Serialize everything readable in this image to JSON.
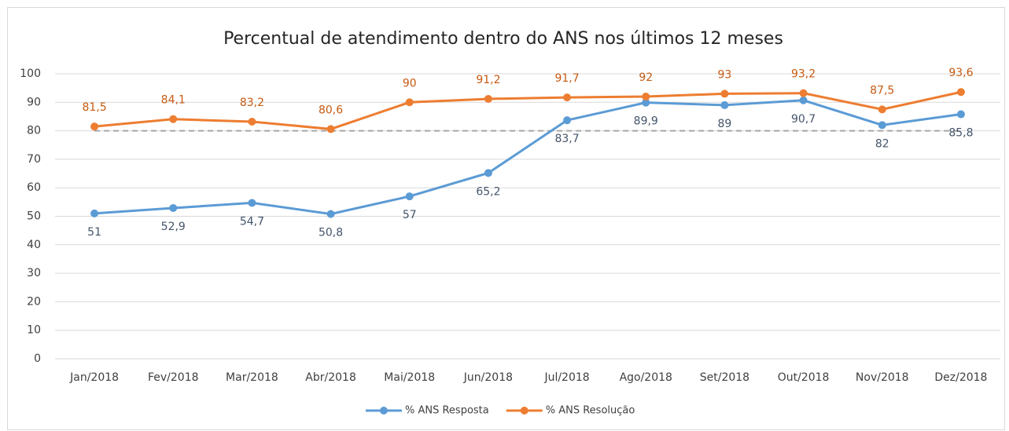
{
  "chart_data": {
    "type": "line",
    "title": "Percentual de atendimento dentro do ANS nos últimos 12 meses",
    "categories": [
      "Jan/2018",
      "Fev/2018",
      "Mar/2018",
      "Abr/2018",
      "Mai/2018",
      "Jun/2018",
      "Jul/2018",
      "Ago/2018",
      "Set/2018",
      "Out/2018",
      "Nov/2018",
      "Dez/2018"
    ],
    "series": [
      {
        "name": "% ANS Resposta",
        "color": "#5b9bd5",
        "values": [
          51,
          52.9,
          54.7,
          50.8,
          57,
          65.2,
          83.7,
          89.9,
          89,
          90.7,
          82,
          85.8
        ],
        "value_labels": [
          "51",
          "52,9",
          "54,7",
          "50,8",
          "57",
          "65,2",
          "83,7",
          "89,9",
          "89",
          "90,7",
          "82",
          "85,8"
        ]
      },
      {
        "name": "% ANS Resolução",
        "color": "#ed7d31",
        "values": [
          81.5,
          84.1,
          83.2,
          80.6,
          90,
          91.2,
          91.7,
          92,
          93,
          93.2,
          87.5,
          93.6
        ],
        "value_labels": [
          "81,5",
          "84,1",
          "83,2",
          "80,6",
          "90",
          "91,2",
          "91,7",
          "92",
          "93",
          "93,2",
          "87,5",
          "93,6"
        ]
      }
    ],
    "reference_line": 80,
    "ylim": [
      0,
      100
    ],
    "yticks": [
      0,
      10,
      20,
      30,
      40,
      50,
      60,
      70,
      80,
      90,
      100
    ],
    "grid": true,
    "legend": "bottom"
  }
}
